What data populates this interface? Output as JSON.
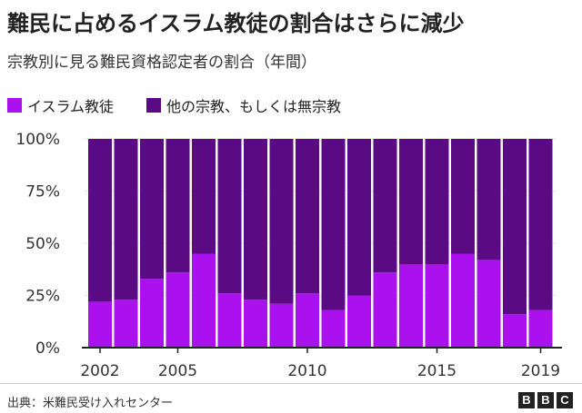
{
  "title": "難民に占めるイスラム教徒の割合はさらに減少",
  "subtitle": "宗教別に見る難民資格認定者の割合（年間）",
  "source": "出典：米難民受け入れセンター",
  "logo": [
    "B",
    "B",
    "C"
  ],
  "colors": {
    "muslim": "#aa11ee",
    "other": "#5a0a82",
    "axis": "#222222",
    "grid": "#e6e6e6"
  },
  "chart_data": {
    "type": "bar",
    "stacked": true,
    "x": [
      2002,
      2003,
      2004,
      2005,
      2006,
      2007,
      2008,
      2009,
      2010,
      2011,
      2012,
      2013,
      2014,
      2015,
      2016,
      2017,
      2018,
      2019
    ],
    "x_tick_labels": [
      "2002",
      "2005",
      "2010",
      "2015",
      "2019"
    ],
    "series": [
      {
        "name": "イスラム教徒",
        "color": "#aa11ee",
        "values": [
          22,
          23,
          33,
          36,
          45,
          26,
          23,
          21,
          26,
          18,
          25,
          36,
          40,
          40,
          45,
          42,
          16,
          18
        ]
      },
      {
        "name": "他の宗教、もしくは無宗教",
        "color": "#5a0a82",
        "values": [
          78,
          77,
          67,
          64,
          55,
          74,
          77,
          79,
          74,
          82,
          75,
          64,
          60,
          60,
          55,
          58,
          84,
          82
        ]
      }
    ],
    "y_tick_labels": [
      "0%",
      "25%",
      "50%",
      "75%",
      "100%"
    ],
    "y_ticks": [
      0,
      25,
      50,
      75,
      100
    ],
    "ylim": [
      0,
      100
    ],
    "legend_position": "top-left",
    "grid": true
  }
}
